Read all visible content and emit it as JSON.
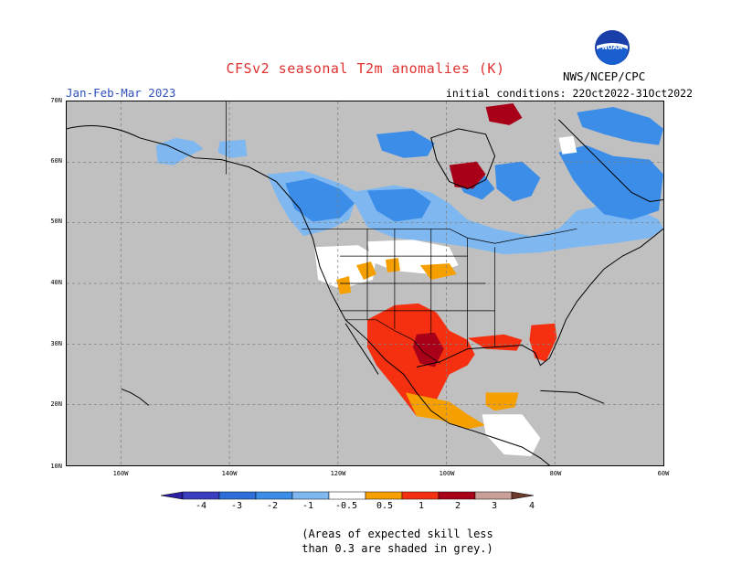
{
  "title": "CFSv2 seasonal T2m anomalies (K)",
  "period": "Jan-Feb-Mar 2023",
  "initial_conditions": "initial conditions: 22Oct2022-31Oct2022",
  "agency": "NWS/NCEP/CPC",
  "logo_text": "NOAA",
  "lat_labels": [
    "70N",
    "60N",
    "50N",
    "40N",
    "30N",
    "20N",
    "10N"
  ],
  "lon_labels": [
    "160W",
    "140W",
    "120W",
    "100W",
    "80W",
    "60W"
  ],
  "colorbar": {
    "labels": [
      "-4",
      "-3",
      "-2",
      "-1",
      "-0.5",
      "0.5",
      "1",
      "2",
      "3",
      "4"
    ],
    "colors": [
      "#2a1fa0",
      "#3a3fc0",
      "#2e6ed8",
      "#3c8de8",
      "#7fb8f0",
      "#ffffff",
      "#f5a000",
      "#f53010",
      "#a80018",
      "#c8a098",
      "#6b3a2a"
    ]
  },
  "note_line1": "(Areas of expected skill less",
  "note_line2": "than 0.3 are shaded in grey.)",
  "colors": {
    "skill_mask_grey": "#c0c0c0",
    "neutral": "#ffffff",
    "light_blue": "#7fb8f0",
    "blue": "#3c8de8",
    "orange": "#f5a000",
    "red": "#f53010",
    "dark_red": "#a80018"
  }
}
